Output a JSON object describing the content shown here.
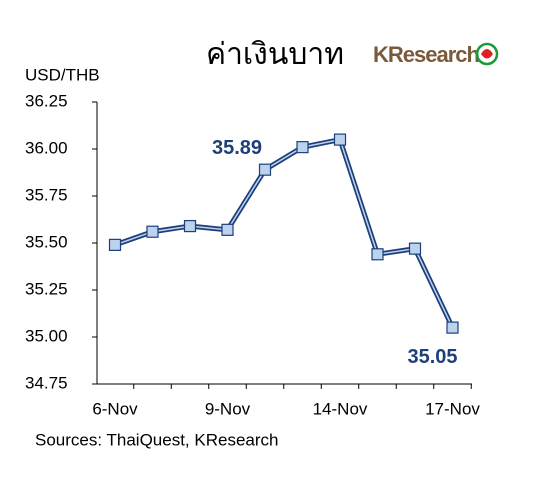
{
  "chart_data": {
    "type": "line",
    "title": "ค่าเงินบาท",
    "logo": "KResearch",
    "y_label": "USD/THB",
    "source": "Sources: ThaiQuest, KResearch",
    "categories": [
      "6-Nov",
      null,
      null,
      "9-Nov",
      null,
      null,
      "14-Nov",
      null,
      null,
      "17-Nov"
    ],
    "series": [
      {
        "name": "USD/THB",
        "color": "#1f3f7a",
        "marker_color": "#bcd3ee",
        "values": [
          35.49,
          35.56,
          35.59,
          35.57,
          35.89,
          36.01,
          36.05,
          35.44,
          35.47,
          35.05
        ],
        "value_labels": [
          null,
          null,
          null,
          null,
          "35.89",
          null,
          null,
          null,
          null,
          "35.05"
        ]
      }
    ],
    "ylim": [
      34.75,
      36.25
    ],
    "yticks": [
      {
        "value": 34.75,
        "label": "34.75"
      },
      {
        "value": 35,
        "label": "35.00"
      },
      {
        "value": 35.25,
        "label": "35.25"
      },
      {
        "value": 35.5,
        "label": "35.50"
      },
      {
        "value": 35.75,
        "label": "35.75"
      },
      {
        "value": 36,
        "label": "36.00"
      },
      {
        "value": 36.25,
        "label": "36.25"
      }
    ],
    "grid": false
  }
}
